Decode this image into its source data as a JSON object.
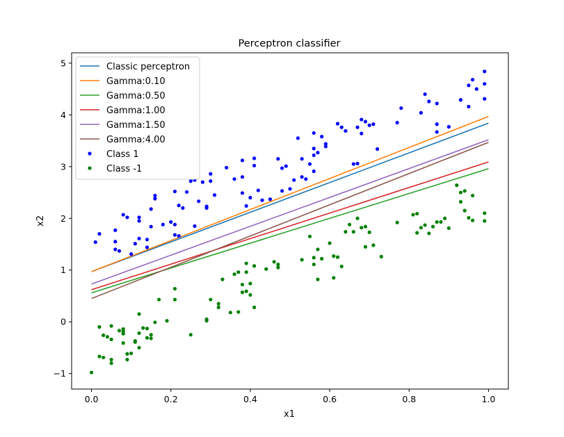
{
  "chart_data": {
    "type": "scatter",
    "title": "Perceptron classifier",
    "xlabel": "x1",
    "ylabel": "x2",
    "xlim": [
      -0.05,
      1.05
    ],
    "ylim": [
      -1.3,
      5.2
    ],
    "xticks": [
      0.0,
      0.2,
      0.4,
      0.6,
      0.8,
      1.0
    ],
    "xtick_labels": [
      "0.0",
      "0.2",
      "0.4",
      "0.6",
      "0.8",
      "1.0"
    ],
    "yticks": [
      -1,
      0,
      1,
      2,
      3,
      4,
      5
    ],
    "ytick_labels": [
      "−1",
      "0",
      "1",
      "2",
      "3",
      "4",
      "5"
    ],
    "grid": false,
    "legend_position": "top-left",
    "lines": [
      {
        "name": "Classic perceptron",
        "color": "#1f77b4",
        "x": [
          0.0,
          1.0
        ],
        "y": [
          0.97,
          3.84
        ]
      },
      {
        "name": "Gamma:0.10",
        "color": "#ff7f0e",
        "x": [
          0.0,
          1.0
        ],
        "y": [
          0.97,
          3.97
        ]
      },
      {
        "name": "Gamma:0.50",
        "color": "#2ca02c",
        "x": [
          0.0,
          1.0
        ],
        "y": [
          0.56,
          2.96
        ]
      },
      {
        "name": "Gamma:1.00",
        "color": "#d62728",
        "x": [
          0.0,
          1.0
        ],
        "y": [
          0.62,
          3.09
        ]
      },
      {
        "name": "Gamma:1.50",
        "color": "#9467bd",
        "x": [
          0.0,
          1.0
        ],
        "y": [
          0.73,
          3.52
        ]
      },
      {
        "name": "Gamma:4.00",
        "color": "#8c564b",
        "x": [
          0.0,
          1.0
        ],
        "y": [
          0.45,
          3.47
        ]
      }
    ],
    "series": [
      {
        "name": "Class 1",
        "color": "#0000ff",
        "points": [
          [
            0.01,
            1.54
          ],
          [
            0.02,
            1.7
          ],
          [
            0.06,
            1.4
          ],
          [
            0.06,
            1.55
          ],
          [
            0.06,
            1.77
          ],
          [
            0.07,
            1.37
          ],
          [
            0.08,
            2.07
          ],
          [
            0.09,
            2.02
          ],
          [
            0.1,
            1.31
          ],
          [
            0.11,
            1.51
          ],
          [
            0.12,
            2.02
          ],
          [
            0.12,
            1.95
          ],
          [
            0.12,
            1.61
          ],
          [
            0.14,
            1.59
          ],
          [
            0.14,
            1.44
          ],
          [
            0.15,
            2.18
          ],
          [
            0.15,
            1.84
          ],
          [
            0.16,
            2.44
          ],
          [
            0.16,
            2.38
          ],
          [
            0.18,
            1.88
          ],
          [
            0.2,
            1.93
          ],
          [
            0.21,
            1.88
          ],
          [
            0.21,
            2.52
          ],
          [
            0.21,
            1.68
          ],
          [
            0.22,
            1.66
          ],
          [
            0.22,
            2.25
          ],
          [
            0.23,
            2.2
          ],
          [
            0.24,
            2.51
          ],
          [
            0.25,
            2.72
          ],
          [
            0.26,
            2.74
          ],
          [
            0.26,
            1.85
          ],
          [
            0.27,
            2.33
          ],
          [
            0.28,
            2.7
          ],
          [
            0.29,
            2.23
          ],
          [
            0.29,
            2.2
          ],
          [
            0.3,
            2.86
          ],
          [
            0.3,
            2.72
          ],
          [
            0.31,
            2.45
          ],
          [
            0.34,
            2.98
          ],
          [
            0.36,
            2.76
          ],
          [
            0.38,
            3.12
          ],
          [
            0.38,
            2.8
          ],
          [
            0.38,
            2.49
          ],
          [
            0.39,
            2.24
          ],
          [
            0.4,
            2.4
          ],
          [
            0.41,
            3.02
          ],
          [
            0.41,
            3.16
          ],
          [
            0.42,
            2.54
          ],
          [
            0.43,
            2.35
          ],
          [
            0.45,
            2.37
          ],
          [
            0.47,
            3.15
          ],
          [
            0.48,
            2.53
          ],
          [
            0.48,
            2.97
          ],
          [
            0.49,
            3.01
          ],
          [
            0.5,
            2.57
          ],
          [
            0.51,
            2.74
          ],
          [
            0.52,
            3.55
          ],
          [
            0.53,
            2.8
          ],
          [
            0.53,
            3.15
          ],
          [
            0.54,
            2.76
          ],
          [
            0.55,
            3.05
          ],
          [
            0.56,
            3.35
          ],
          [
            0.56,
            3.65
          ],
          [
            0.56,
            3.22
          ],
          [
            0.56,
            2.91
          ],
          [
            0.57,
            3.27
          ],
          [
            0.58,
            3.58
          ],
          [
            0.59,
            3.44
          ],
          [
            0.59,
            3.39
          ],
          [
            0.62,
            3.83
          ],
          [
            0.63,
            3.76
          ],
          [
            0.64,
            3.69
          ],
          [
            0.66,
            3.05
          ],
          [
            0.67,
            3.06
          ],
          [
            0.67,
            3.76
          ],
          [
            0.68,
            3.64
          ],
          [
            0.68,
            3.91
          ],
          [
            0.69,
            3.87
          ],
          [
            0.7,
            3.8
          ],
          [
            0.71,
            3.82
          ],
          [
            0.72,
            3.34
          ],
          [
            0.77,
            3.85
          ],
          [
            0.78,
            4.13
          ],
          [
            0.83,
            4.04
          ],
          [
            0.84,
            4.4
          ],
          [
            0.85,
            4.26
          ],
          [
            0.87,
            3.67
          ],
          [
            0.87,
            4.22
          ],
          [
            0.87,
            3.82
          ],
          [
            0.9,
            3.77
          ],
          [
            0.93,
            4.29
          ],
          [
            0.95,
            4.16
          ],
          [
            0.95,
            4.57
          ],
          [
            0.96,
            4.68
          ],
          [
            0.97,
            4.5
          ],
          [
            0.99,
            4.31
          ],
          [
            0.99,
            4.6
          ],
          [
            0.99,
            4.84
          ]
        ]
      },
      {
        "name": "Class -1",
        "color": "#008000",
        "points": [
          [
            0.0,
            -0.98
          ],
          [
            0.02,
            -0.1
          ],
          [
            0.02,
            -0.67
          ],
          [
            0.03,
            -0.69
          ],
          [
            0.03,
            -0.26
          ],
          [
            0.04,
            -0.29
          ],
          [
            0.05,
            -0.8
          ],
          [
            0.05,
            -0.73
          ],
          [
            0.05,
            -0.08
          ],
          [
            0.05,
            -0.34
          ],
          [
            0.07,
            -0.17
          ],
          [
            0.08,
            -0.41
          ],
          [
            0.08,
            -0.23
          ],
          [
            0.08,
            -0.19
          ],
          [
            0.08,
            -0.14
          ],
          [
            0.09,
            -0.73
          ],
          [
            0.09,
            -0.62
          ],
          [
            0.1,
            -0.61
          ],
          [
            0.11,
            -0.39
          ],
          [
            0.11,
            -0.37
          ],
          [
            0.12,
            0.15
          ],
          [
            0.12,
            -0.5
          ],
          [
            0.12,
            -0.22
          ],
          [
            0.13,
            -0.12
          ],
          [
            0.14,
            -0.13
          ],
          [
            0.14,
            -0.31
          ],
          [
            0.15,
            -0.25
          ],
          [
            0.15,
            -0.32
          ],
          [
            0.16,
            -0.01
          ],
          [
            0.17,
            0.43
          ],
          [
            0.19,
            0.02
          ],
          [
            0.21,
            0.43
          ],
          [
            0.21,
            0.64
          ],
          [
            0.25,
            -0.25
          ],
          [
            0.29,
            0.02
          ],
          [
            0.29,
            0.05
          ],
          [
            0.3,
            0.43
          ],
          [
            0.32,
            0.35
          ],
          [
            0.32,
            0.28
          ],
          [
            0.33,
            0.82
          ],
          [
            0.35,
            0.18
          ],
          [
            0.36,
            0.92
          ],
          [
            0.37,
            0.96
          ],
          [
            0.37,
            0.19
          ],
          [
            0.38,
            0.57
          ],
          [
            0.38,
            0.72
          ],
          [
            0.39,
            0.96
          ],
          [
            0.39,
            1.13
          ],
          [
            0.39,
            0.59
          ],
          [
            0.4,
            0.52
          ],
          [
            0.4,
            0.74
          ],
          [
            0.41,
            0.28
          ],
          [
            0.41,
            1.08
          ],
          [
            0.44,
            1.02
          ],
          [
            0.46,
            1.16
          ],
          [
            0.47,
            1.11
          ],
          [
            0.47,
            1.05
          ],
          [
            0.53,
            1.2
          ],
          [
            0.55,
            1.65
          ],
          [
            0.56,
            1.24
          ],
          [
            0.56,
            1.11
          ],
          [
            0.57,
            1.4
          ],
          [
            0.57,
            0.82
          ],
          [
            0.58,
            1.22
          ],
          [
            0.6,
            1.52
          ],
          [
            0.61,
            1.27
          ],
          [
            0.61,
            0.85
          ],
          [
            0.62,
            1.25
          ],
          [
            0.63,
            1.07
          ],
          [
            0.64,
            1.74
          ],
          [
            0.65,
            1.88
          ],
          [
            0.66,
            1.74
          ],
          [
            0.67,
            2.0
          ],
          [
            0.68,
            1.82
          ],
          [
            0.69,
            1.45
          ],
          [
            0.69,
            1.84
          ],
          [
            0.7,
            1.73
          ],
          [
            0.71,
            1.48
          ],
          [
            0.73,
            1.26
          ],
          [
            0.77,
            1.92
          ],
          [
            0.81,
            2.07
          ],
          [
            0.82,
            2.09
          ],
          [
            0.82,
            1.72
          ],
          [
            0.83,
            1.82
          ],
          [
            0.84,
            1.87
          ],
          [
            0.85,
            1.71
          ],
          [
            0.86,
            1.84
          ],
          [
            0.87,
            1.93
          ],
          [
            0.88,
            1.93
          ],
          [
            0.89,
            2.0
          ],
          [
            0.9,
            1.81
          ],
          [
            0.92,
            2.64
          ],
          [
            0.93,
            2.5
          ],
          [
            0.93,
            2.32
          ],
          [
            0.94,
            2.53
          ],
          [
            0.94,
            2.15
          ],
          [
            0.95,
            2.01
          ],
          [
            0.96,
            1.96
          ],
          [
            0.96,
            2.44
          ],
          [
            0.99,
            2.1
          ],
          [
            0.99,
            1.95
          ]
        ]
      }
    ]
  }
}
